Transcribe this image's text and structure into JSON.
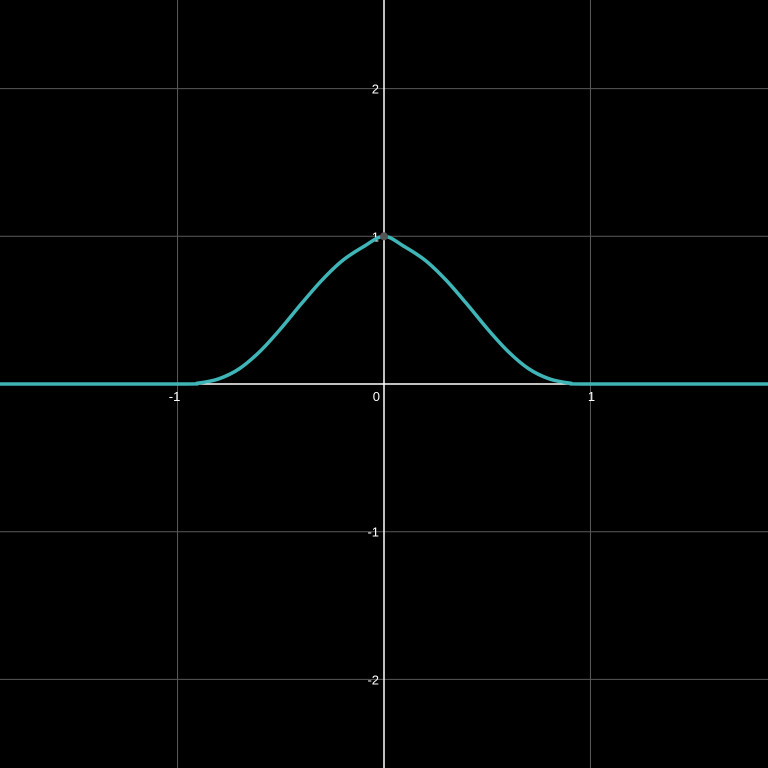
{
  "chart_data": {
    "type": "line",
    "title": "",
    "xlabel": "",
    "ylabel": "",
    "xlim": [
      -1.86,
      1.86
    ],
    "ylim": [
      -2.6,
      2.6
    ],
    "grid": true,
    "x_ticks": [
      {
        "value": -1,
        "label": "-1"
      },
      {
        "value": 0,
        "label": "0"
      },
      {
        "value": 1,
        "label": "1"
      }
    ],
    "y_ticks": [
      {
        "value": 2,
        "label": "2"
      },
      {
        "value": 1,
        "label": "1"
      },
      {
        "value": -1,
        "label": "-1"
      },
      {
        "value": -2,
        "label": "-2"
      }
    ],
    "series": [
      {
        "color": "#3fb5b8",
        "x": [
          -1.86,
          -1.0,
          -0.9,
          -0.8,
          -0.7,
          -0.6,
          -0.5,
          -0.4,
          -0.3,
          -0.2,
          -0.1,
          0.0,
          0.1,
          0.2,
          0.3,
          0.4,
          0.5,
          0.6,
          0.7,
          0.8,
          0.9,
          1.0,
          1.86
        ],
        "y": [
          0.0,
          0.0,
          0.006,
          0.035,
          0.104,
          0.222,
          0.375,
          0.544,
          0.704,
          0.837,
          0.929,
          1.0,
          0.929,
          0.837,
          0.704,
          0.544,
          0.375,
          0.222,
          0.104,
          0.035,
          0.006,
          0.0,
          0.0
        ]
      }
    ],
    "points": [
      {
        "x": 0,
        "y": 1,
        "color": "#555555"
      }
    ]
  },
  "colors": {
    "background": "#000000",
    "grid": "#5a5a5a",
    "axis": "#ffffff",
    "curve": "#3fb5b8"
  }
}
